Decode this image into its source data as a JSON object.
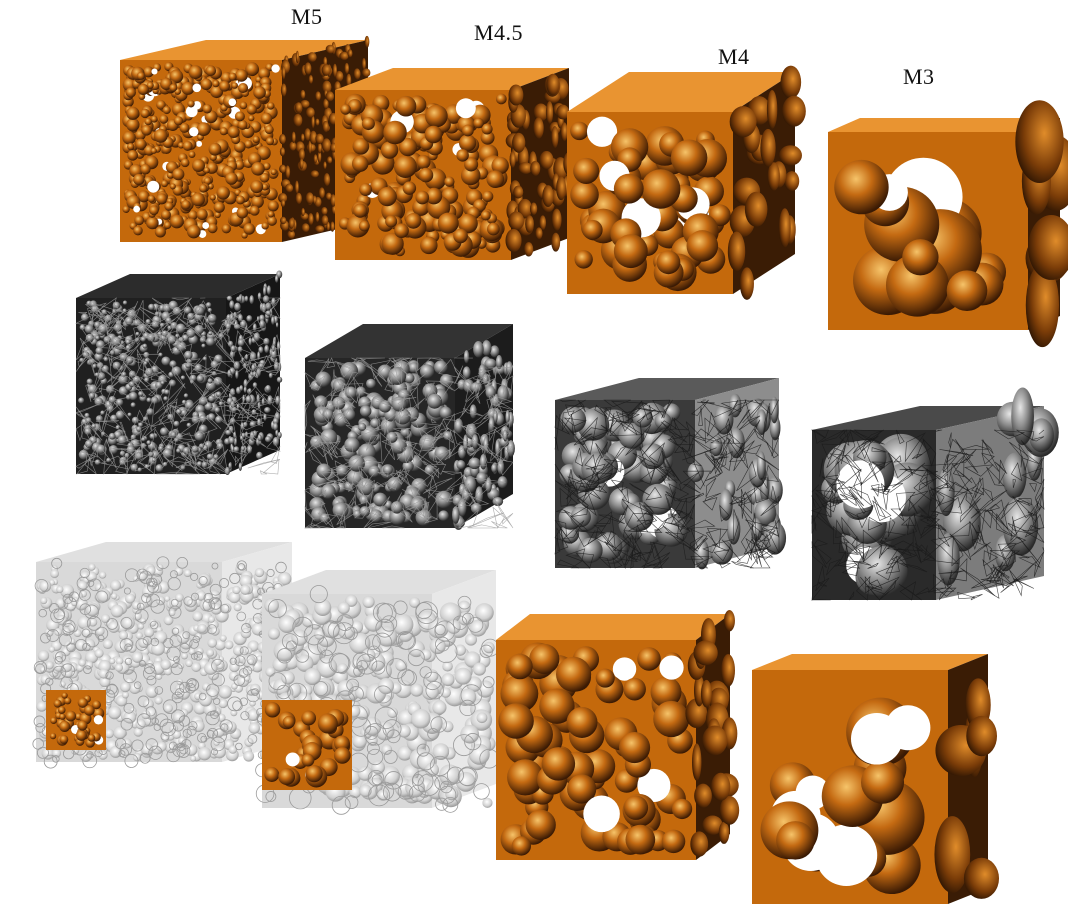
{
  "labels": [
    "M5",
    "M4.5",
    "M4",
    "M3"
  ],
  "rows": [
    {
      "render": "solid-orange",
      "cubes": 4
    },
    {
      "render": "grey-mesh",
      "cubes": 4
    },
    {
      "render": "transparent-with-inset-solid",
      "cubes": 4
    }
  ],
  "colors": {
    "orange": "#c4690c",
    "orange_light": "#e99431",
    "orange_dark": "#3a1c05",
    "mesh_dark": "#2b2b2b",
    "mesh_light": "#8a8a8a",
    "glass": "#d8d8d8"
  },
  "icons": [
    "foam-cube-icon"
  ]
}
